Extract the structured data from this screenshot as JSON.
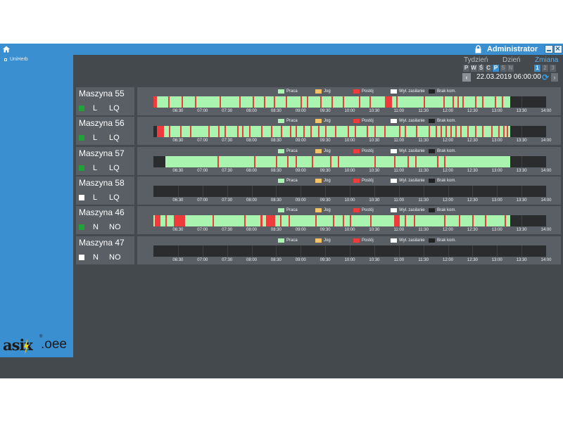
{
  "titlebar": {
    "user": "Administrator"
  },
  "sidebar": {
    "tree_item": "UniHerb"
  },
  "logo": {
    "text": "asix",
    "suffix": "oee",
    "reg": "®"
  },
  "period": {
    "labels": [
      {
        "text": "Tydzień",
        "active": false
      },
      {
        "text": "Dzień",
        "active": false
      },
      {
        "text": "Zmiana",
        "active": true
      }
    ],
    "day_buttons": [
      {
        "label": "P",
        "state": "normal"
      },
      {
        "label": "W",
        "state": "normal"
      },
      {
        "label": "Ś",
        "state": "normal"
      },
      {
        "label": "C",
        "state": "normal"
      },
      {
        "label": "P",
        "state": "selected"
      },
      {
        "label": "S",
        "state": "dim"
      },
      {
        "label": "N",
        "state": "dim"
      }
    ],
    "shift_buttons": [
      {
        "label": "1",
        "state": "selected"
      },
      {
        "label": "2",
        "state": "dim"
      },
      {
        "label": "3",
        "state": "dim"
      }
    ],
    "datetime": "22.03.2019 06:00:00",
    "prev_icon": "chevron-left-icon",
    "refresh_icon": "refresh-icon",
    "next_icon": "chevron-right-icon"
  },
  "legend": [
    {
      "label": "Praca",
      "color": "#a9f5b0"
    },
    {
      "label": "Jog",
      "color": "#f5c266"
    },
    {
      "label": "Postój",
      "color": "#ee3b3b"
    },
    {
      "label": "Wył. zasilanie",
      "color": "#ffffff"
    },
    {
      "label": "Brak kom.",
      "color": "#222222"
    }
  ],
  "timeline": {
    "start_hour": 6.0,
    "end_hour": 14.0,
    "ticks": [
      "06:30",
      "07:00",
      "07:30",
      "08:00",
      "08:30",
      "09:00",
      "09:30",
      "10:00",
      "10:30",
      "11:00",
      "11:30",
      "12:00",
      "12:30",
      "13:00",
      "13:30",
      "14:00"
    ]
  },
  "colors": {
    "work": "#a9f5b0",
    "stop": "#ee3b3b",
    "nocomm": "#2a2c2e",
    "status_on": "#22a03a",
    "status_off": "#ffffff"
  },
  "machines": [
    {
      "name": "Maszyna 55",
      "status": "on",
      "mode": "L",
      "quality": "LQ",
      "work": [
        6.0,
        13.27
      ],
      "stops": [
        [
          6.0,
          6.07
        ],
        [
          6.3,
          6.32
        ],
        [
          6.58,
          6.6
        ],
        [
          6.85,
          6.87
        ],
        [
          7.35,
          7.37
        ],
        [
          7.75,
          7.78
        ],
        [
          8.02,
          8.04
        ],
        [
          8.25,
          8.27
        ],
        [
          8.45,
          8.47
        ],
        [
          8.7,
          8.72
        ],
        [
          9.0,
          9.03
        ],
        [
          9.12,
          9.14
        ],
        [
          9.4,
          9.42
        ],
        [
          9.63,
          9.65
        ],
        [
          9.85,
          9.87
        ],
        [
          10.18,
          10.22
        ],
        [
          10.4,
          10.42
        ],
        [
          10.72,
          10.86
        ],
        [
          10.95,
          10.97
        ],
        [
          11.5,
          11.52
        ],
        [
          11.9,
          11.92
        ],
        [
          12.1,
          12.12
        ],
        [
          12.2,
          12.22
        ],
        [
          12.3,
          12.32
        ],
        [
          12.55,
          12.57
        ],
        [
          12.7,
          12.73
        ],
        [
          12.95,
          12.97
        ],
        [
          13.1,
          13.12
        ]
      ]
    },
    {
      "name": "Maszyna 56",
      "status": "on",
      "mode": "L",
      "quality": "LQ",
      "work": [
        6.07,
        13.27
      ],
      "stops": [
        [
          6.07,
          6.22
        ],
        [
          6.32,
          6.34
        ],
        [
          6.55,
          6.57
        ],
        [
          6.75,
          6.77
        ],
        [
          7.12,
          7.14
        ],
        [
          7.32,
          7.34
        ],
        [
          7.45,
          7.47
        ],
        [
          7.7,
          7.72
        ],
        [
          7.8,
          7.82
        ],
        [
          7.95,
          7.97
        ],
        [
          8.2,
          8.22
        ],
        [
          8.4,
          8.42
        ],
        [
          8.6,
          8.62
        ],
        [
          8.78,
          8.8
        ],
        [
          8.9,
          8.92
        ],
        [
          9.05,
          9.07
        ],
        [
          9.2,
          9.22
        ],
        [
          9.35,
          9.37
        ],
        [
          9.5,
          9.52
        ],
        [
          9.7,
          9.72
        ],
        [
          9.95,
          9.97
        ],
        [
          10.1,
          10.12
        ],
        [
          10.35,
          10.37
        ],
        [
          10.5,
          10.52
        ],
        [
          10.7,
          10.72
        ],
        [
          11.0,
          11.02
        ],
        [
          11.12,
          11.14
        ],
        [
          11.35,
          11.37
        ],
        [
          11.6,
          11.62
        ],
        [
          11.75,
          11.77
        ],
        [
          11.85,
          11.87
        ],
        [
          11.95,
          11.97
        ],
        [
          12.05,
          12.07
        ],
        [
          12.15,
          12.17
        ],
        [
          12.25,
          12.27
        ],
        [
          12.4,
          12.42
        ],
        [
          12.55,
          12.57
        ],
        [
          12.7,
          12.72
        ],
        [
          12.88,
          12.9
        ],
        [
          13.02,
          13.04
        ],
        [
          13.12,
          13.14
        ],
        [
          13.2,
          13.22
        ]
      ]
    },
    {
      "name": "Maszyna 57",
      "status": "on",
      "mode": "L",
      "quality": "LQ",
      "work": [
        6.25,
        13.27
      ],
      "stops": [
        [
          7.3,
          7.32
        ],
        [
          8.05,
          8.07
        ],
        [
          8.5,
          8.52
        ],
        [
          8.72,
          8.74
        ],
        [
          8.9,
          8.92
        ],
        [
          9.22,
          9.24
        ],
        [
          9.6,
          9.62
        ],
        [
          9.75,
          9.77
        ],
        [
          10.5,
          10.52
        ],
        [
          10.9,
          10.92
        ],
        [
          11.18,
          11.2
        ],
        [
          11.33,
          11.35
        ],
        [
          11.78,
          11.8
        ],
        [
          11.92,
          11.94
        ]
      ]
    },
    {
      "name": "Maszyna 58",
      "status": "off",
      "mode": "L",
      "quality": "LQ",
      "work": null,
      "stops": []
    },
    {
      "name": "Maszyna 46",
      "status": "on",
      "mode": "N",
      "quality": "NO",
      "work": [
        6.0,
        13.27
      ],
      "stops": [
        [
          6.03,
          6.15
        ],
        [
          6.25,
          6.27
        ],
        [
          6.42,
          6.65
        ],
        [
          7.2,
          7.22
        ],
        [
          7.85,
          7.87
        ],
        [
          8.18,
          8.22
        ],
        [
          8.3,
          8.48
        ],
        [
          8.58,
          8.6
        ],
        [
          8.75,
          8.77
        ],
        [
          9.3,
          9.32
        ],
        [
          9.65,
          9.67
        ],
        [
          9.85,
          9.87
        ],
        [
          10.0,
          10.02
        ],
        [
          10.42,
          10.44
        ],
        [
          10.9,
          11.02
        ],
        [
          11.12,
          11.14
        ],
        [
          11.3,
          11.32
        ],
        [
          11.92,
          11.94
        ],
        [
          12.22,
          12.24
        ],
        [
          12.5,
          12.52
        ],
        [
          12.75,
          12.77
        ],
        [
          13.15,
          13.17
        ]
      ]
    },
    {
      "name": "Maszyna 47",
      "status": "off",
      "mode": "N",
      "quality": "NO",
      "work": null,
      "stops": []
    }
  ]
}
